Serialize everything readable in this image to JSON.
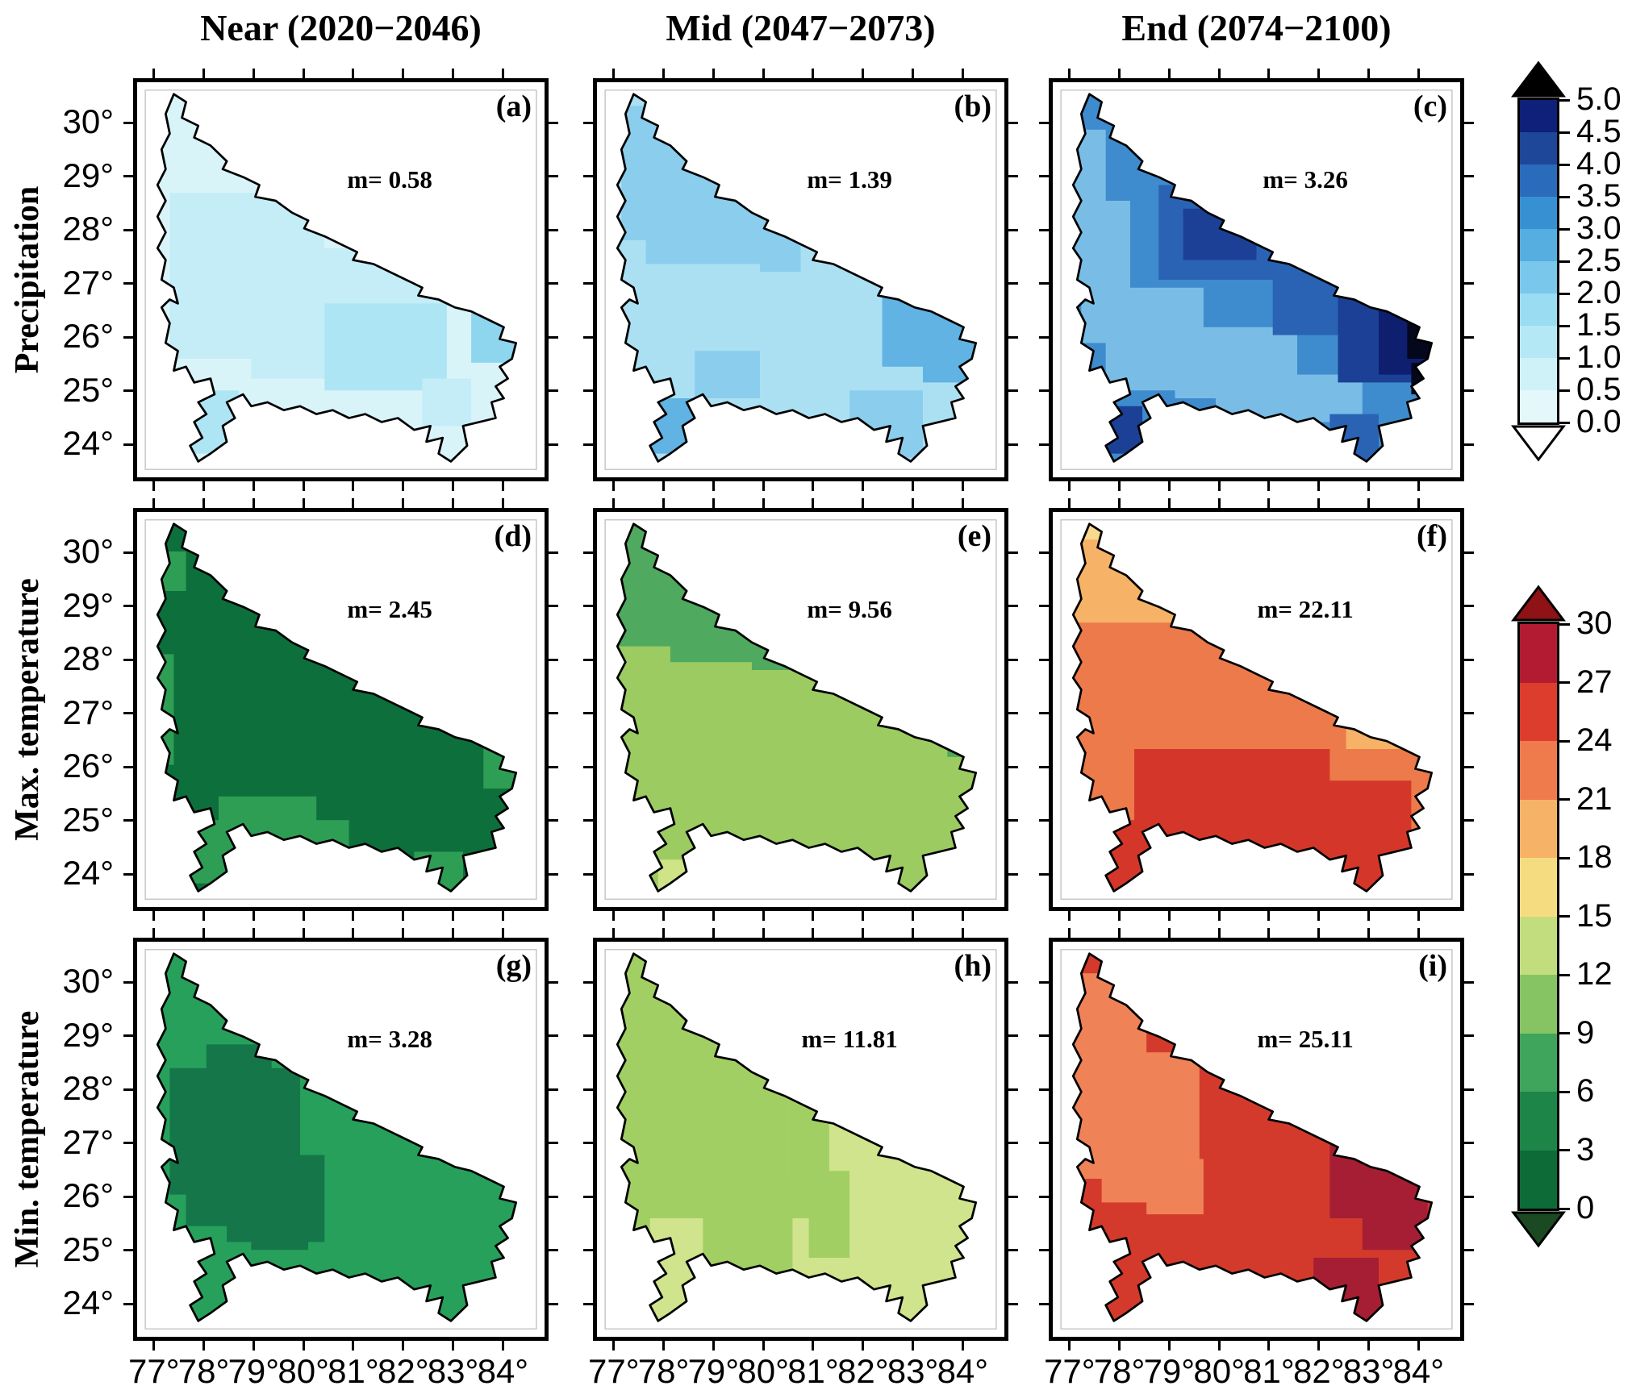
{
  "figure": {
    "column_titles": [
      "Near (2020−2046)",
      "Mid (2047−2073)",
      "End (2074−2100)"
    ],
    "row_labels": [
      "Precipitation",
      "Max. temperature",
      "Min. temperature"
    ]
  },
  "axes": {
    "x_tick_labels": [
      "77°",
      "78°",
      "79°",
      "80°",
      "81°",
      "82°",
      "83°",
      "84°"
    ],
    "y_tick_labels": [
      "30°",
      "29°",
      "28°",
      "27°",
      "26°",
      "25°",
      "24°"
    ]
  },
  "panels": [
    {
      "id": "a",
      "row": 0,
      "col": 0,
      "label": "(a)",
      "mean_label": "m= 0.58",
      "fills": [
        "#d9f4f9",
        "#c4edf7",
        "#aee5f4",
        "#8ed5ee"
      ]
    },
    {
      "id": "b",
      "row": 0,
      "col": 1,
      "label": "(b)",
      "mean_label": "m= 1.39",
      "fills": [
        "#abe0f3",
        "#8bcdec",
        "#60b3e3"
      ]
    },
    {
      "id": "c",
      "row": 0,
      "col": 2,
      "label": "(c)",
      "mean_label": "m= 3.26",
      "fills": [
        "#3e8ccd",
        "#79bde6",
        "#2a63b3",
        "#1c4096",
        "#0e1f70",
        "#05081c"
      ]
    },
    {
      "id": "d",
      "row": 1,
      "col": 0,
      "label": "(d)",
      "mean_label": "m= 2.45",
      "fills": [
        "#0d6f3b",
        "#2f9e55"
      ]
    },
    {
      "id": "e",
      "row": 1,
      "col": 1,
      "label": "(e)",
      "mean_label": "m= 9.56",
      "fills": [
        "#9ccb62",
        "#4fa95e",
        "#cfe387"
      ]
    },
    {
      "id": "f",
      "row": 1,
      "col": 2,
      "label": "(f)",
      "mean_label": "m= 22.11",
      "fills": [
        "#ec7a4b",
        "#f6b367",
        "#d4372a",
        "#f8d98e"
      ]
    },
    {
      "id": "g",
      "row": 2,
      "col": 0,
      "label": "(g)",
      "mean_label": "m= 3.28",
      "fills": [
        "#27a05b",
        "#15764a"
      ]
    },
    {
      "id": "h",
      "row": 2,
      "col": 1,
      "label": "(h)",
      "mean_label": "m= 11.81",
      "fills": [
        "#cfe48c",
        "#a2cf63",
        "#f4a259"
      ]
    },
    {
      "id": "i",
      "row": 2,
      "col": 2,
      "label": "(i)",
      "mean_label": "m= 25.11",
      "fills": [
        "#d43a2c",
        "#ef8257",
        "#a51e33"
      ]
    }
  ],
  "colorbars": {
    "precipitation": {
      "tick_labels": [
        "0.0",
        "0.5",
        "1.0",
        "1.5",
        "2.0",
        "2.5",
        "3.0",
        "3.5",
        "4.0",
        "4.5",
        "5.0"
      ],
      "segment_colors": [
        "#e4f8fb",
        "#cff2f8",
        "#b5e8f5",
        "#9adcf2",
        "#79c7ea",
        "#55ade0",
        "#3790d2",
        "#2a6bbb",
        "#1e4699",
        "#0e2079"
      ],
      "arrow_top_color": "#000000",
      "arrow_bottom_color": "#ffffff"
    },
    "temperature": {
      "tick_labels": [
        "0",
        "3",
        "6",
        "9",
        "12",
        "15",
        "18",
        "21",
        "24",
        "27",
        "30"
      ],
      "segment_colors": [
        "#0d6b38",
        "#1e8549",
        "#3fa45c",
        "#86c463",
        "#c2dd7e",
        "#f6dc81",
        "#f6b367",
        "#ef7b4d",
        "#dd3d2d",
        "#b31b32"
      ],
      "arrow_top_color": "#8f1216",
      "arrow_bottom_color": "#1b4a22"
    }
  },
  "chart_data": {
    "type": "heatmap",
    "description": "3x3 grid of gridded climate-projection maps of Uttar Pradesh, India; columns are future periods, rows are variables; each panel reports its spatial mean m.",
    "columns": [
      "Near (2020−2046)",
      "Mid (2047−2073)",
      "End (2074−2100)"
    ],
    "rows": [
      "Precipitation",
      "Max. temperature",
      "Min. temperature"
    ],
    "panel_means": [
      {
        "panel": "a",
        "row": "Precipitation",
        "column": "Near (2020−2046)",
        "mean": 0.58
      },
      {
        "panel": "b",
        "row": "Precipitation",
        "column": "Mid (2047−2073)",
        "mean": 1.39
      },
      {
        "panel": "c",
        "row": "Precipitation",
        "column": "End (2074−2100)",
        "mean": 3.26
      },
      {
        "panel": "d",
        "row": "Max. temperature",
        "column": "Near (2020−2046)",
        "mean": 2.45
      },
      {
        "panel": "e",
        "row": "Max. temperature",
        "column": "Mid (2047−2073)",
        "mean": 9.56
      },
      {
        "panel": "f",
        "row": "Max. temperature",
        "column": "End (2074−2100)",
        "mean": 22.11
      },
      {
        "panel": "g",
        "row": "Min. temperature",
        "column": "Near (2020−2046)",
        "mean": 3.28
      },
      {
        "panel": "h",
        "row": "Min. temperature",
        "column": "Mid (2047−2073)",
        "mean": 11.81
      },
      {
        "panel": "i",
        "row": "Min. temperature",
        "column": "End (2074−2100)",
        "mean": 25.11
      }
    ],
    "x_axis": {
      "tick_values": [
        77,
        78,
        79,
        80,
        81,
        82,
        83,
        84
      ],
      "unit": "°"
    },
    "y_axis": {
      "tick_values": [
        30,
        29,
        28,
        27,
        26,
        25,
        24
      ],
      "unit": "°"
    },
    "colorbar_precipitation": {
      "min": 0.0,
      "max": 5.0,
      "step": 0.5,
      "applies_to_row": "Precipitation",
      "over_color": "black",
      "under_color": "white"
    },
    "colorbar_temperature": {
      "min": 0,
      "max": 30,
      "step": 3,
      "applies_to_rows": [
        "Max. temperature",
        "Min. temperature"
      ]
    },
    "legend_position": "right",
    "grid": false
  }
}
